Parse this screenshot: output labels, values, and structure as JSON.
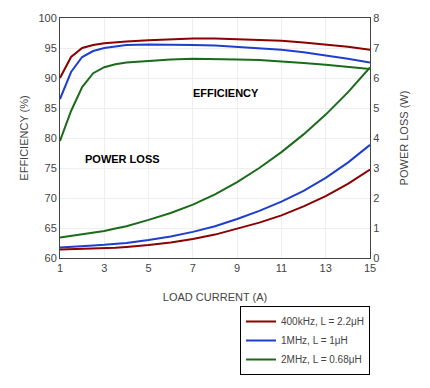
{
  "chart_data": {
    "type": "line",
    "xlabel": "LOAD CURRENT (A)",
    "ylabel": "EFFICIENCY (%)",
    "y2label": "POWER LOSS (W)",
    "x": [
      1,
      1.5,
      2,
      2.5,
      3,
      3.5,
      4,
      5,
      6,
      7,
      8,
      9,
      10,
      11,
      12,
      13,
      14,
      15
    ],
    "xlim": [
      1,
      15
    ],
    "ylim": [
      60,
      100
    ],
    "y2lim": [
      0,
      8
    ],
    "xticks": [
      1,
      3,
      5,
      7,
      9,
      11,
      13,
      15
    ],
    "yticks": [
      60,
      65,
      70,
      75,
      80,
      85,
      90,
      95,
      100
    ],
    "y2ticks": [
      0,
      1,
      2,
      3,
      4,
      5,
      6,
      7,
      8
    ],
    "grid": true,
    "legend": "lower right",
    "annotations": [
      {
        "text": "EFFICIENCY",
        "x": 8.5,
        "y": 87.5
      },
      {
        "text": "POWER LOSS",
        "x": 3.8,
        "y": 76.5
      }
    ],
    "series": [
      {
        "name": "400kHz, L = 2.2μH",
        "color": "#8B0000",
        "axis": "y",
        "values": [
          90.0,
          93.5,
          95.0,
          95.5,
          95.8,
          96.0,
          96.1,
          96.3,
          96.5,
          96.6,
          96.6,
          96.5,
          96.4,
          96.2,
          95.9,
          95.6,
          95.2,
          94.7
        ]
      },
      {
        "name": "400kHz, L = 2.2μH",
        "color": "#8B0000",
        "axis": "y2",
        "values": [
          0.28,
          0.29,
          0.3,
          0.31,
          0.32,
          0.34,
          0.37,
          0.43,
          0.52,
          0.63,
          0.78,
          0.97,
          1.18,
          1.42,
          1.72,
          2.06,
          2.47,
          2.95
        ]
      },
      {
        "name": "1MHz, L = 1μH",
        "color": "#1E3ECC",
        "axis": "y",
        "values": [
          86.5,
          91.0,
          93.5,
          94.5,
          95.0,
          95.3,
          95.5,
          95.6,
          95.6,
          95.5,
          95.4,
          95.2,
          95.0,
          94.7,
          94.3,
          93.8,
          93.2,
          92.6
        ]
      },
      {
        "name": "1MHz, L = 1μH",
        "color": "#1E3ECC",
        "axis": "y2",
        "values": [
          0.35,
          0.38,
          0.4,
          0.42,
          0.44,
          0.47,
          0.5,
          0.6,
          0.72,
          0.87,
          1.06,
          1.3,
          1.57,
          1.88,
          2.24,
          2.67,
          3.18,
          3.77
        ]
      },
      {
        "name": "2MHz, L = 0.68μH",
        "color": "#1A6B1A",
        "axis": "y",
        "values": [
          79.5,
          84.5,
          88.5,
          90.8,
          91.8,
          92.3,
          92.6,
          92.9,
          93.1,
          93.2,
          93.2,
          93.1,
          93.0,
          92.8,
          92.5,
          92.2,
          91.9,
          91.5
        ]
      },
      {
        "name": "2MHz, L = 0.68μH",
        "color": "#1A6B1A",
        "axis": "y2",
        "values": [
          0.68,
          0.73,
          0.78,
          0.84,
          0.9,
          0.98,
          1.06,
          1.27,
          1.5,
          1.78,
          2.12,
          2.53,
          3.0,
          3.53,
          4.12,
          4.78,
          5.52,
          6.35
        ]
      }
    ]
  }
}
